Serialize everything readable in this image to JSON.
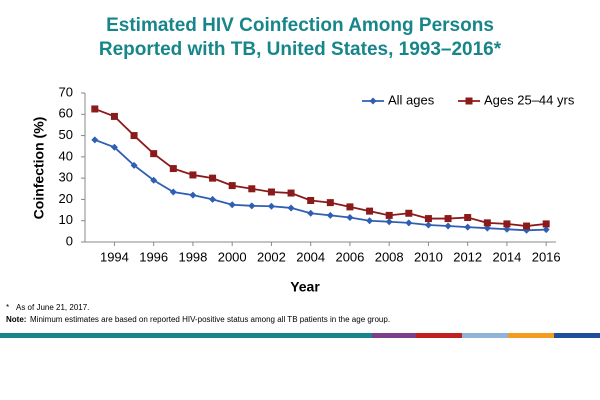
{
  "chart_data": {
    "type": "line",
    "title": [
      "Estimated HIV Coinfection Among Persons",
      "Reported with TB, United States, 1993–2016*"
    ],
    "x_label": "Year",
    "y_label": "Coinfection (%)",
    "x": [
      1993,
      1994,
      1995,
      1996,
      1997,
      1998,
      1999,
      2000,
      2001,
      2002,
      2003,
      2004,
      2005,
      2006,
      2007,
      2008,
      2009,
      2010,
      2011,
      2012,
      2013,
      2014,
      2015,
      2016
    ],
    "series": [
      {
        "name": "All ages",
        "color": "#2f5fb3",
        "marker": "diamond",
        "values": [
          48,
          44.5,
          36,
          29,
          23.5,
          22,
          20,
          17.5,
          17,
          16.8,
          16,
          13.5,
          12.5,
          11.5,
          10,
          9.5,
          9,
          8,
          7.5,
          7,
          6.5,
          6,
          5.5,
          5.8
        ]
      },
      {
        "name": "Ages 25–44 yrs",
        "color": "#8b1a1a",
        "marker": "square",
        "values": [
          62.5,
          59,
          50,
          41.5,
          34.5,
          31.5,
          30,
          26.5,
          25,
          23.5,
          23,
          19.5,
          18.5,
          16.5,
          14.5,
          12.5,
          13.5,
          11,
          11,
          11.5,
          9,
          8.5,
          7.5,
          8.5
        ]
      }
    ],
    "xlim": [
      1992.5,
      2016.5
    ],
    "xticks": [
      1994,
      1996,
      1998,
      2000,
      2002,
      2004,
      2006,
      2008,
      2010,
      2012,
      2014,
      2016
    ],
    "ylim": [
      0,
      70
    ],
    "yticks": [
      0,
      10,
      20,
      30,
      40,
      50,
      60,
      70
    ],
    "legend": "top-right",
    "footnote": {
      "mark": "*",
      "text": "As of June 21, 2017."
    },
    "note": {
      "label": "Note:",
      "text": "Minimum estimates are based on reported HIV-positive status among all TB patients in the age group."
    }
  }
}
